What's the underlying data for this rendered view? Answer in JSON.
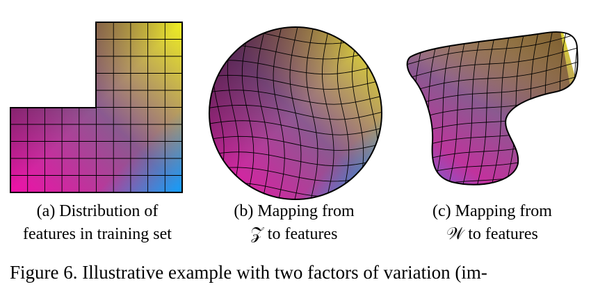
{
  "panels": [
    {
      "caption_lines": [
        "(a) Distribution of",
        "features in training set"
      ]
    },
    {
      "caption_lines": [
        "(b) Mapping from",
        "𝒵 to features"
      ]
    },
    {
      "caption_lines": [
        "(c) Mapping from",
        "𝒲 to features"
      ]
    }
  ],
  "figure_caption": "Figure 6. Illustrative example with two factors of variation (im-"
}
